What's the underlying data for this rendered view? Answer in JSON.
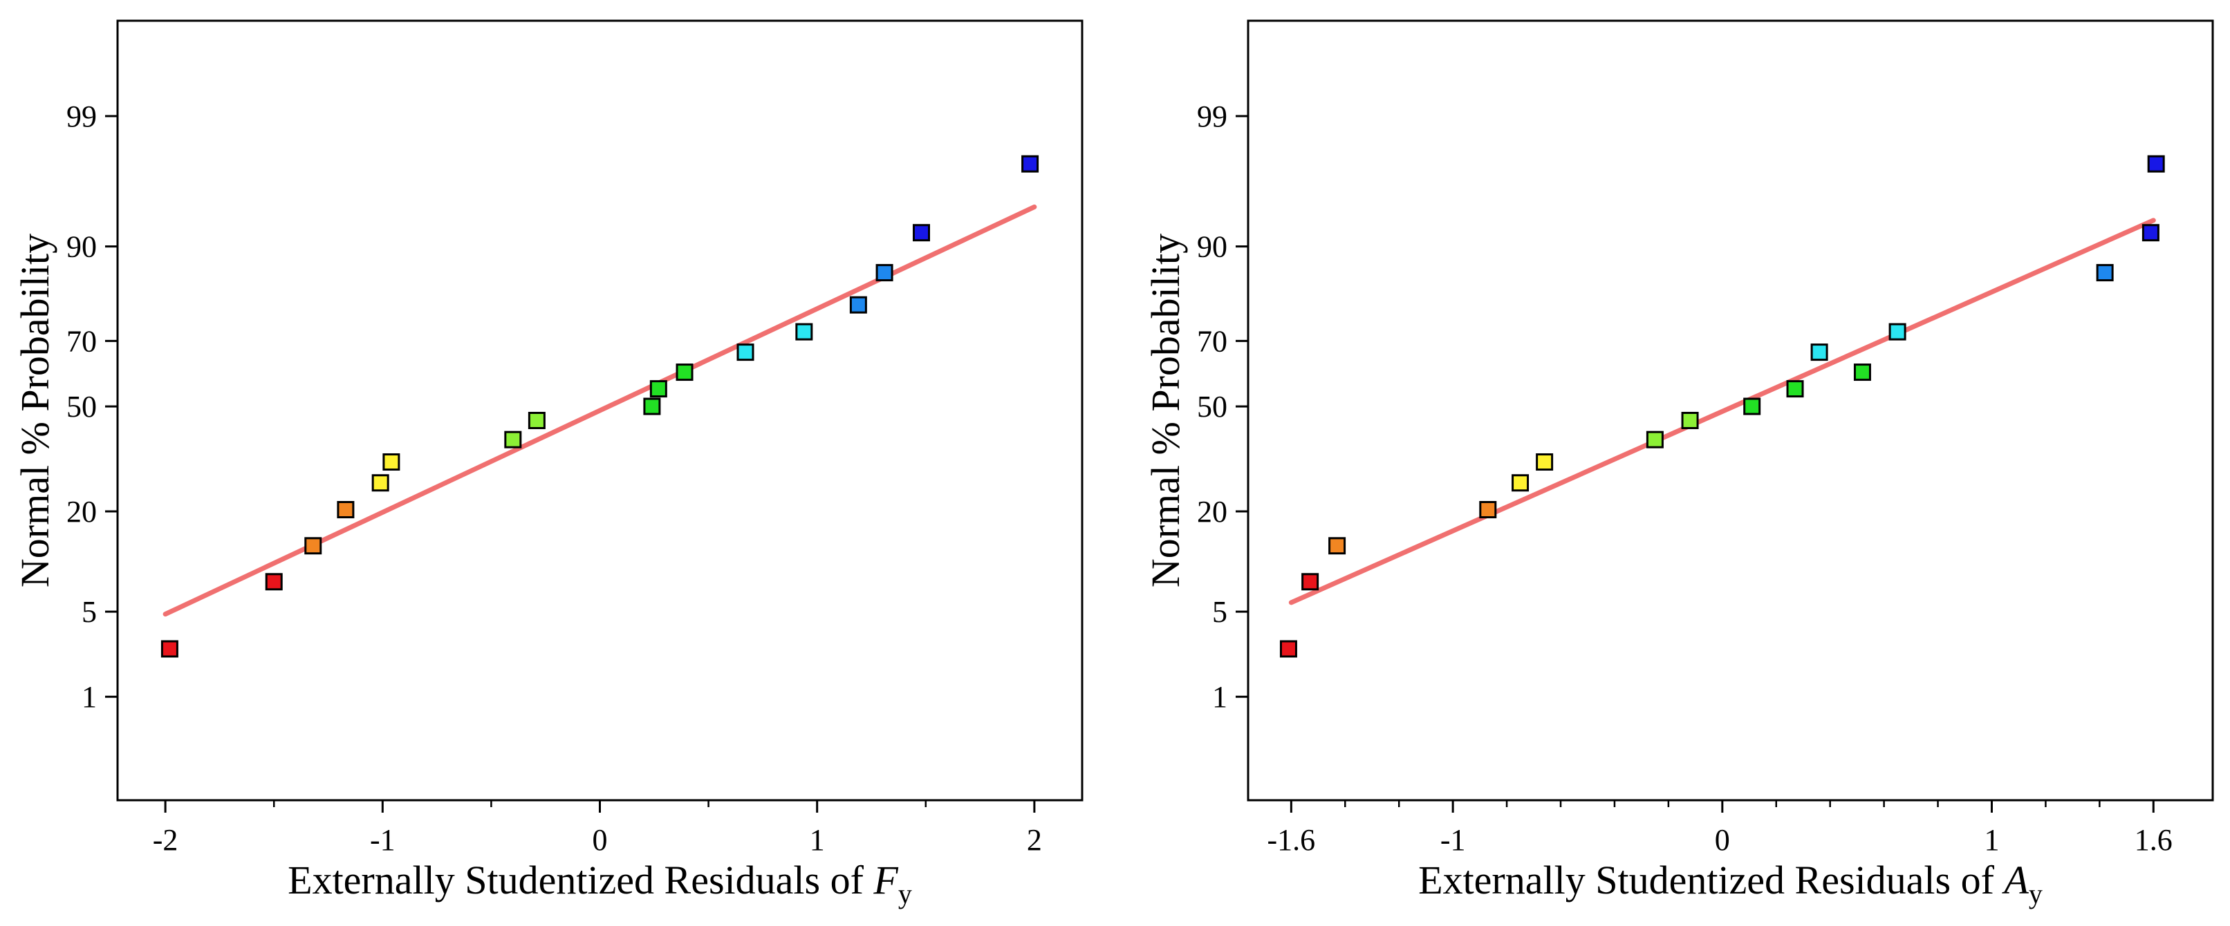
{
  "chart_data": [
    {
      "type": "scatter",
      "title": "",
      "xlabel": {
        "prefix": "Externally Studentized Residuals of ",
        "var": "F",
        "sub": "y"
      },
      "ylabel": "Normal % Probability",
      "xlim": [
        -2.22,
        2.22
      ],
      "y_scale": "normal-probability",
      "ylim_percent": [
        0.08,
        99.9
      ],
      "x_ticks": [
        -2,
        -1,
        0,
        1,
        2
      ],
      "x_tick_labels": [
        "-2",
        "-1",
        "0",
        "1",
        "2"
      ],
      "x_minor_ticks": [
        -1.5,
        -0.5,
        0.5,
        1.5
      ],
      "y_ticks": [
        1,
        5,
        20,
        50,
        70,
        90,
        99
      ],
      "y_tick_labels": [
        "1",
        "5",
        "20",
        "50",
        "70",
        "90",
        "99"
      ],
      "fit_line": {
        "x": [
          -2.0,
          2.0
        ],
        "y_percent": [
          4.8,
          94.5
        ]
      },
      "points": [
        {
          "x": -1.98,
          "y": 2.6,
          "color": "#e8141b"
        },
        {
          "x": -1.5,
          "y": 8.0,
          "color": "#e8141b"
        },
        {
          "x": -1.32,
          "y": 13.2,
          "color": "#f28622"
        },
        {
          "x": -1.17,
          "y": 20.4,
          "color": "#f28622"
        },
        {
          "x": -1.01,
          "y": 27.0,
          "color": "#fff230"
        },
        {
          "x": -0.96,
          "y": 32.8,
          "color": "#fff230"
        },
        {
          "x": -0.4,
          "y": 39.5,
          "color": "#8cf036"
        },
        {
          "x": -0.29,
          "y": 45.5,
          "color": "#8cf036"
        },
        {
          "x": 0.24,
          "y": 50.0,
          "color": "#22e024"
        },
        {
          "x": 0.27,
          "y": 55.6,
          "color": "#22e024"
        },
        {
          "x": 0.39,
          "y": 60.8,
          "color": "#22e024"
        },
        {
          "x": 0.67,
          "y": 66.8,
          "color": "#2be6f2"
        },
        {
          "x": 0.94,
          "y": 72.5,
          "color": "#2be6f2"
        },
        {
          "x": 1.19,
          "y": 79.2,
          "color": "#1e88ee"
        },
        {
          "x": 1.31,
          "y": 85.8,
          "color": "#1e88ee"
        },
        {
          "x": 1.48,
          "y": 91.8,
          "color": "#1717e6"
        },
        {
          "x": 1.98,
          "y": 97.4,
          "color": "#1717e6"
        }
      ]
    },
    {
      "type": "scatter",
      "title": "",
      "xlabel": {
        "prefix": "Externally Studentized Residuals of ",
        "var": "A",
        "sub": "y"
      },
      "ylabel": "Normal % Probability",
      "xlim": [
        -1.76,
        1.82
      ],
      "y_scale": "normal-probability",
      "ylim_percent": [
        0.08,
        99.9
      ],
      "x_ticks": [
        -1.6,
        -1,
        0,
        1,
        1.6
      ],
      "x_tick_labels": [
        "-1.6",
        "-1",
        "0",
        "1",
        "1.6"
      ],
      "x_minor_ticks": [
        -1.4,
        -1.2,
        -0.8,
        -0.6,
        -0.4,
        -0.2,
        0.2,
        0.4,
        0.6,
        0.8,
        1.2,
        1.4
      ],
      "y_ticks": [
        1,
        5,
        20,
        50,
        70,
        90,
        99
      ],
      "y_tick_labels": [
        "1",
        "5",
        "20",
        "50",
        "70",
        "90",
        "99"
      ],
      "fit_line": {
        "x": [
          -1.6,
          1.6
        ],
        "y_percent": [
          5.8,
          93.2
        ]
      },
      "points": [
        {
          "x": -1.61,
          "y": 2.6,
          "color": "#e8141b"
        },
        {
          "x": -1.53,
          "y": 8.0,
          "color": "#e8141b"
        },
        {
          "x": -1.43,
          "y": 13.2,
          "color": "#f28622"
        },
        {
          "x": -0.87,
          "y": 20.4,
          "color": "#f28622"
        },
        {
          "x": -0.75,
          "y": 27.0,
          "color": "#fff230"
        },
        {
          "x": -0.66,
          "y": 32.8,
          "color": "#fff230"
        },
        {
          "x": -0.25,
          "y": 39.5,
          "color": "#8cf036"
        },
        {
          "x": -0.12,
          "y": 45.5,
          "color": "#8cf036"
        },
        {
          "x": 0.11,
          "y": 50.0,
          "color": "#22e024"
        },
        {
          "x": 0.27,
          "y": 55.6,
          "color": "#22e024"
        },
        {
          "x": 0.52,
          "y": 60.8,
          "color": "#22e024"
        },
        {
          "x": 0.36,
          "y": 66.8,
          "color": "#2be6f2"
        },
        {
          "x": 0.65,
          "y": 72.5,
          "color": "#2be6f2"
        },
        {
          "x": 1.42,
          "y": 85.8,
          "color": "#1e88ee"
        },
        {
          "x": 1.59,
          "y": 91.8,
          "color": "#1717e6"
        },
        {
          "x": 1.61,
          "y": 97.4,
          "color": "#1717e6"
        }
      ]
    }
  ]
}
